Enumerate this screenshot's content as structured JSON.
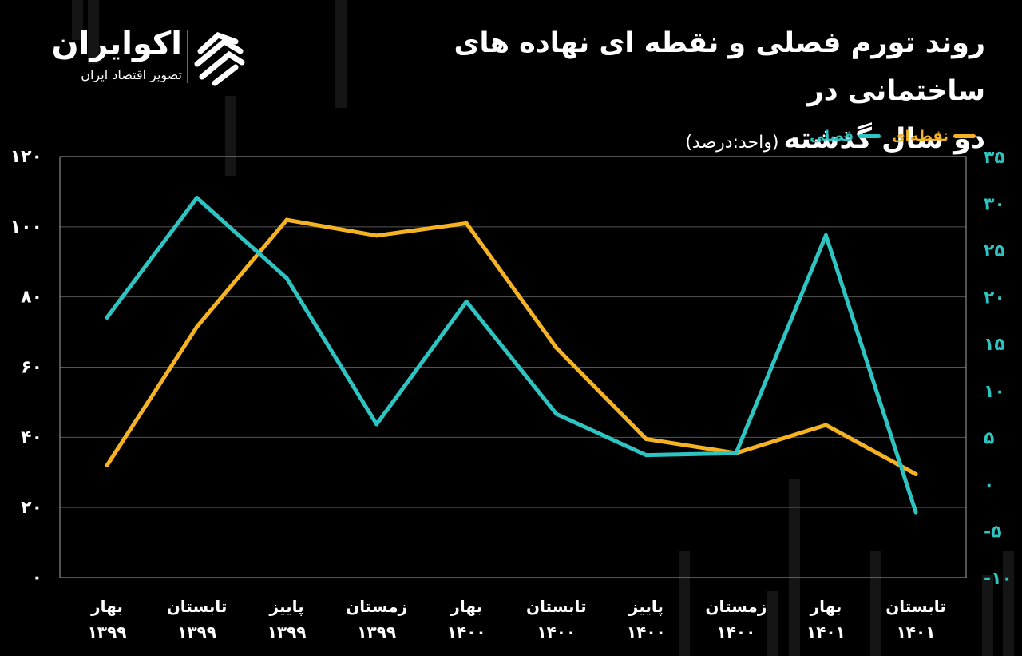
{
  "header": {
    "title_line1": "روند تورم فصلی و نقطه ای نهاده های ساختمانی در",
    "title_line2": "دو سال گذشته",
    "unit": "(واحد:درصد)"
  },
  "logo": {
    "name": "اکوایران",
    "subtitle": "تصویر اقتصاد ایران"
  },
  "colors": {
    "background": "#000000",
    "point_series": "#f5b324",
    "seasonal_series": "#2ec4c2",
    "grid": "#555555"
  },
  "chart_data": {
    "type": "line",
    "legend_position": "top-right",
    "grid": true,
    "categories": [
      [
        "بهار",
        "۱۳۹۹"
      ],
      [
        "تابستان",
        "۱۳۹۹"
      ],
      [
        "پاییز",
        "۱۳۹۹"
      ],
      [
        "زمستان",
        "۱۳۹۹"
      ],
      [
        "بهار",
        "۱۴۰۰"
      ],
      [
        "تابستان",
        "۱۴۰۰"
      ],
      [
        "پاییز",
        "۱۴۰۰"
      ],
      [
        "زمستان",
        "۱۴۰۰"
      ],
      [
        "بهار",
        "۱۴۰۱"
      ],
      [
        "تابستان",
        "۱۴۰۱"
      ]
    ],
    "y_left": {
      "ylim": [
        0,
        120
      ],
      "ticks": [
        "۰",
        "۲۰",
        "۴۰",
        "۶۰",
        "۸۰",
        "۱۰۰",
        "۱۲۰"
      ],
      "tick_values": [
        0,
        20,
        40,
        60,
        80,
        100,
        120
      ]
    },
    "y_right": {
      "ylim": [
        -10,
        35
      ],
      "ticks": [
        "-۱۰",
        "-۵",
        "۰",
        "۵",
        "۱۰",
        "۱۵",
        "۲۰",
        "۲۵",
        "۳۰",
        "۳۵"
      ],
      "tick_values": [
        -10,
        -5,
        0,
        5,
        10,
        15,
        20,
        25,
        30,
        35
      ]
    },
    "series": [
      {
        "name": "نقطه‌ای",
        "axis": "left",
        "color": "#f5b324",
        "values": [
          32,
          71.5,
          102,
          97.5,
          101,
          65.5,
          39.5,
          35.5,
          43.5,
          29.5
        ]
      },
      {
        "name": "فصلی",
        "axis": "right",
        "color": "#2ec4c2",
        "values": [
          17.8,
          30.6,
          22,
          6.4,
          19.5,
          7.5,
          3.1,
          3.3,
          26.6,
          -3
        ]
      }
    ]
  }
}
